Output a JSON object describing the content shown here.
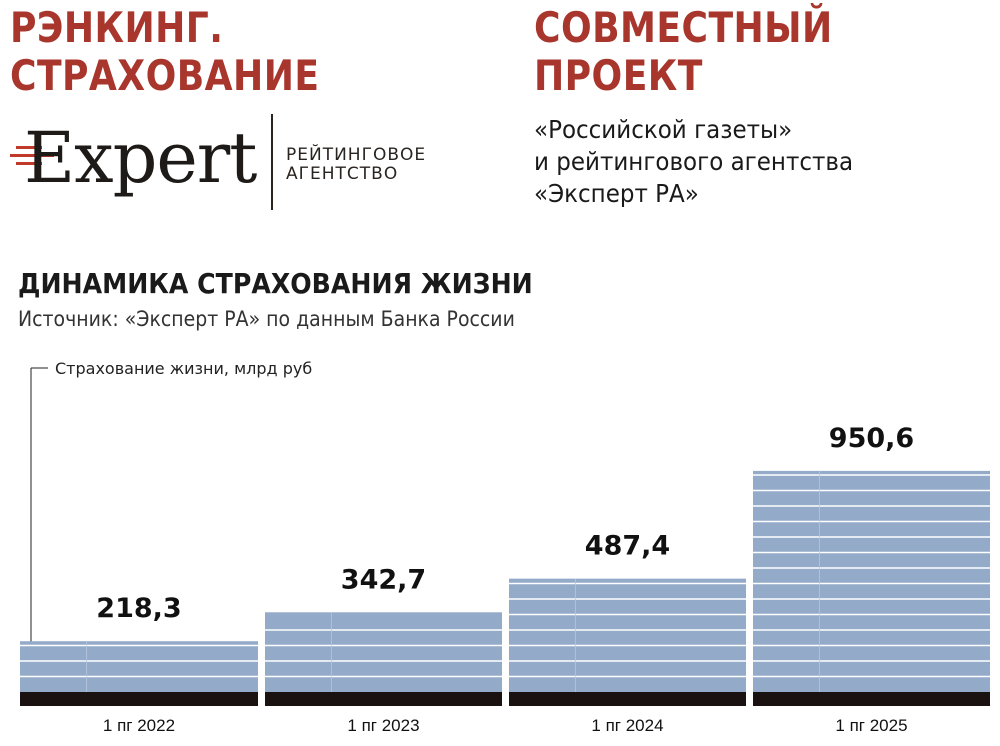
{
  "header": {
    "ranking_title": [
      "РЭНКИНГ.",
      "СТРАХОВАНИЕ"
    ],
    "project_title": [
      "СОВМЕСТНЫЙ",
      "ПРОЕКТ"
    ],
    "project_text": [
      "«Российской газеты»",
      "и рейтингового агентства",
      "«Эксперт РА»"
    ]
  },
  "logo": {
    "word": "Expert",
    "sub": [
      "РЕЙТИНГОВОЕ",
      "АГЕНТСТВО"
    ]
  },
  "colors": {
    "accent_red": "#a8362d",
    "bar_fill": "#93aac9",
    "bar_lines": "#ffffff",
    "base": "#1a1210"
  },
  "chart_data": {
    "type": "bar",
    "title": "ДИНАМИКА СТРАХОВАНИЯ ЖИЗНИ",
    "subtitle": "Источник: «Эксперт РА» по данным Банка России",
    "ylabel": "Страхование жизни, млрд руб",
    "categories": [
      "1 пг 2022",
      "1 пг 2023",
      "1 пг 2024",
      "1 пг 2025"
    ],
    "values": [
      218.3,
      342.7,
      487.4,
      950.6
    ],
    "value_labels": [
      "218,3",
      "342,7",
      "487,4",
      "950,6"
    ],
    "ylim": [
      0,
      1000
    ],
    "grid": false,
    "legend": "none"
  }
}
